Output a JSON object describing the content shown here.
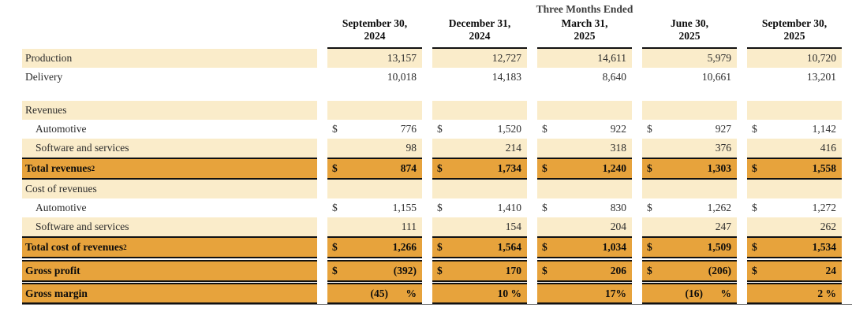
{
  "header": {
    "title": "Three Months Ended",
    "columns": [
      {
        "line1": "September 30,",
        "line2": "2024"
      },
      {
        "line1": "December 31,",
        "line2": "2024"
      },
      {
        "line1": "March 31,",
        "line2": "2025"
      },
      {
        "line1": "June 30,",
        "line2": "2025"
      },
      {
        "line1": "September 30,",
        "line2": "2025"
      }
    ]
  },
  "colors": {
    "cream": "#faecca",
    "gold": "#e7a33c",
    "border": "#111111"
  },
  "rows": [
    {
      "label": "Production",
      "sup": "",
      "indent": false,
      "style": "cream",
      "dollar": false,
      "values": [
        "13,157",
        "12,727",
        "14,611",
        "5,979",
        "10,720"
      ]
    },
    {
      "label": "Delivery",
      "sup": "",
      "indent": false,
      "style": "white",
      "dollar": false,
      "values": [
        "10,018",
        "14,183",
        "8,640",
        "10,661",
        "13,201"
      ]
    },
    {
      "label": "",
      "sup": "",
      "indent": false,
      "style": "spacer",
      "dollar": false,
      "values": [
        "",
        "",
        "",
        "",
        ""
      ]
    },
    {
      "label": "Revenues",
      "sup": "",
      "indent": false,
      "style": "section",
      "dollar": false,
      "values": [
        "",
        "",
        "",
        "",
        ""
      ]
    },
    {
      "label": "Automotive",
      "sup": "",
      "indent": true,
      "style": "white",
      "dollar": true,
      "values": [
        "776",
        "1,520",
        "922",
        "927",
        "1,142"
      ]
    },
    {
      "label": "Software and services",
      "sup": "",
      "indent": true,
      "style": "cream",
      "dollar": false,
      "values": [
        "98",
        "214",
        "318",
        "376",
        "416"
      ]
    },
    {
      "label": "Total revenues",
      "sup": "2",
      "indent": false,
      "style": "total",
      "dollar": true,
      "values": [
        "874",
        "1,734",
        "1,240",
        "1,303",
        "1,558"
      ]
    },
    {
      "label": "Cost of revenues",
      "sup": "",
      "indent": false,
      "style": "section",
      "dollar": false,
      "values": [
        "",
        "",
        "",
        "",
        ""
      ]
    },
    {
      "label": "Automotive",
      "sup": "",
      "indent": true,
      "style": "white",
      "dollar": true,
      "values": [
        "1,155",
        "1,410",
        "830",
        "1,262",
        "1,272"
      ]
    },
    {
      "label": "Software and services",
      "sup": "",
      "indent": true,
      "style": "cream",
      "dollar": false,
      "values": [
        "111",
        "154",
        "204",
        "247",
        "262"
      ]
    },
    {
      "label": "Total cost of revenues",
      "sup": "2",
      "indent": false,
      "style": "total",
      "dollar": true,
      "values": [
        "1,266",
        "1,564",
        "1,034",
        "1,509",
        "1,534"
      ]
    },
    {
      "label": "Gross profit",
      "sup": "",
      "indent": false,
      "style": "total",
      "dollar": true,
      "values": [
        "(392)",
        "170",
        "206",
        "(206)",
        "24"
      ]
    },
    {
      "label": "Gross margin",
      "sup": "",
      "indent": false,
      "style": "margin",
      "dollar": false,
      "values": [
        {
          "num": "(45)",
          "pct": "%"
        },
        {
          "num": "10 %",
          "pct": ""
        },
        {
          "num": "17%",
          "pct": ""
        },
        {
          "num": "(16)",
          "pct": "%"
        },
        {
          "num": "2 %",
          "pct": ""
        }
      ]
    }
  ]
}
